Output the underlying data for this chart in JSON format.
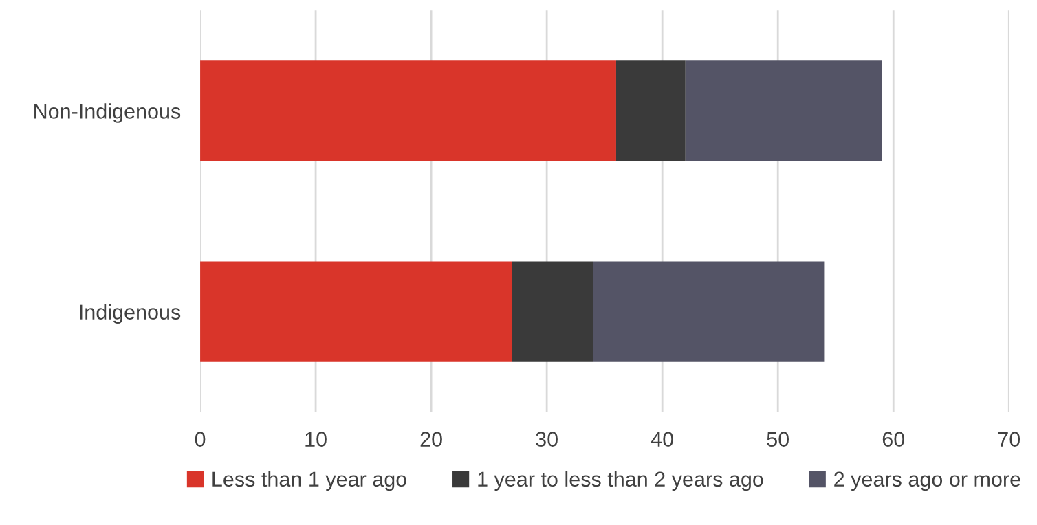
{
  "chart_data": {
    "type": "bar",
    "orientation": "horizontal",
    "stacked": true,
    "categories": [
      "Non-Indigenous",
      "Indigenous"
    ],
    "series": [
      {
        "name": "Less than 1 year ago",
        "color": "#d9352a",
        "values": [
          36,
          27
        ]
      },
      {
        "name": "1 year to less than 2 years ago",
        "color": "#3a3a3a",
        "values": [
          6,
          7
        ]
      },
      {
        "name": "2 years ago or more",
        "color": "#545466",
        "values": [
          17,
          20
        ]
      }
    ],
    "xlim": [
      0,
      70
    ],
    "xticks": [
      0,
      10,
      20,
      30,
      40,
      50,
      60,
      70
    ],
    "grid": "x",
    "legend": "bottom"
  }
}
